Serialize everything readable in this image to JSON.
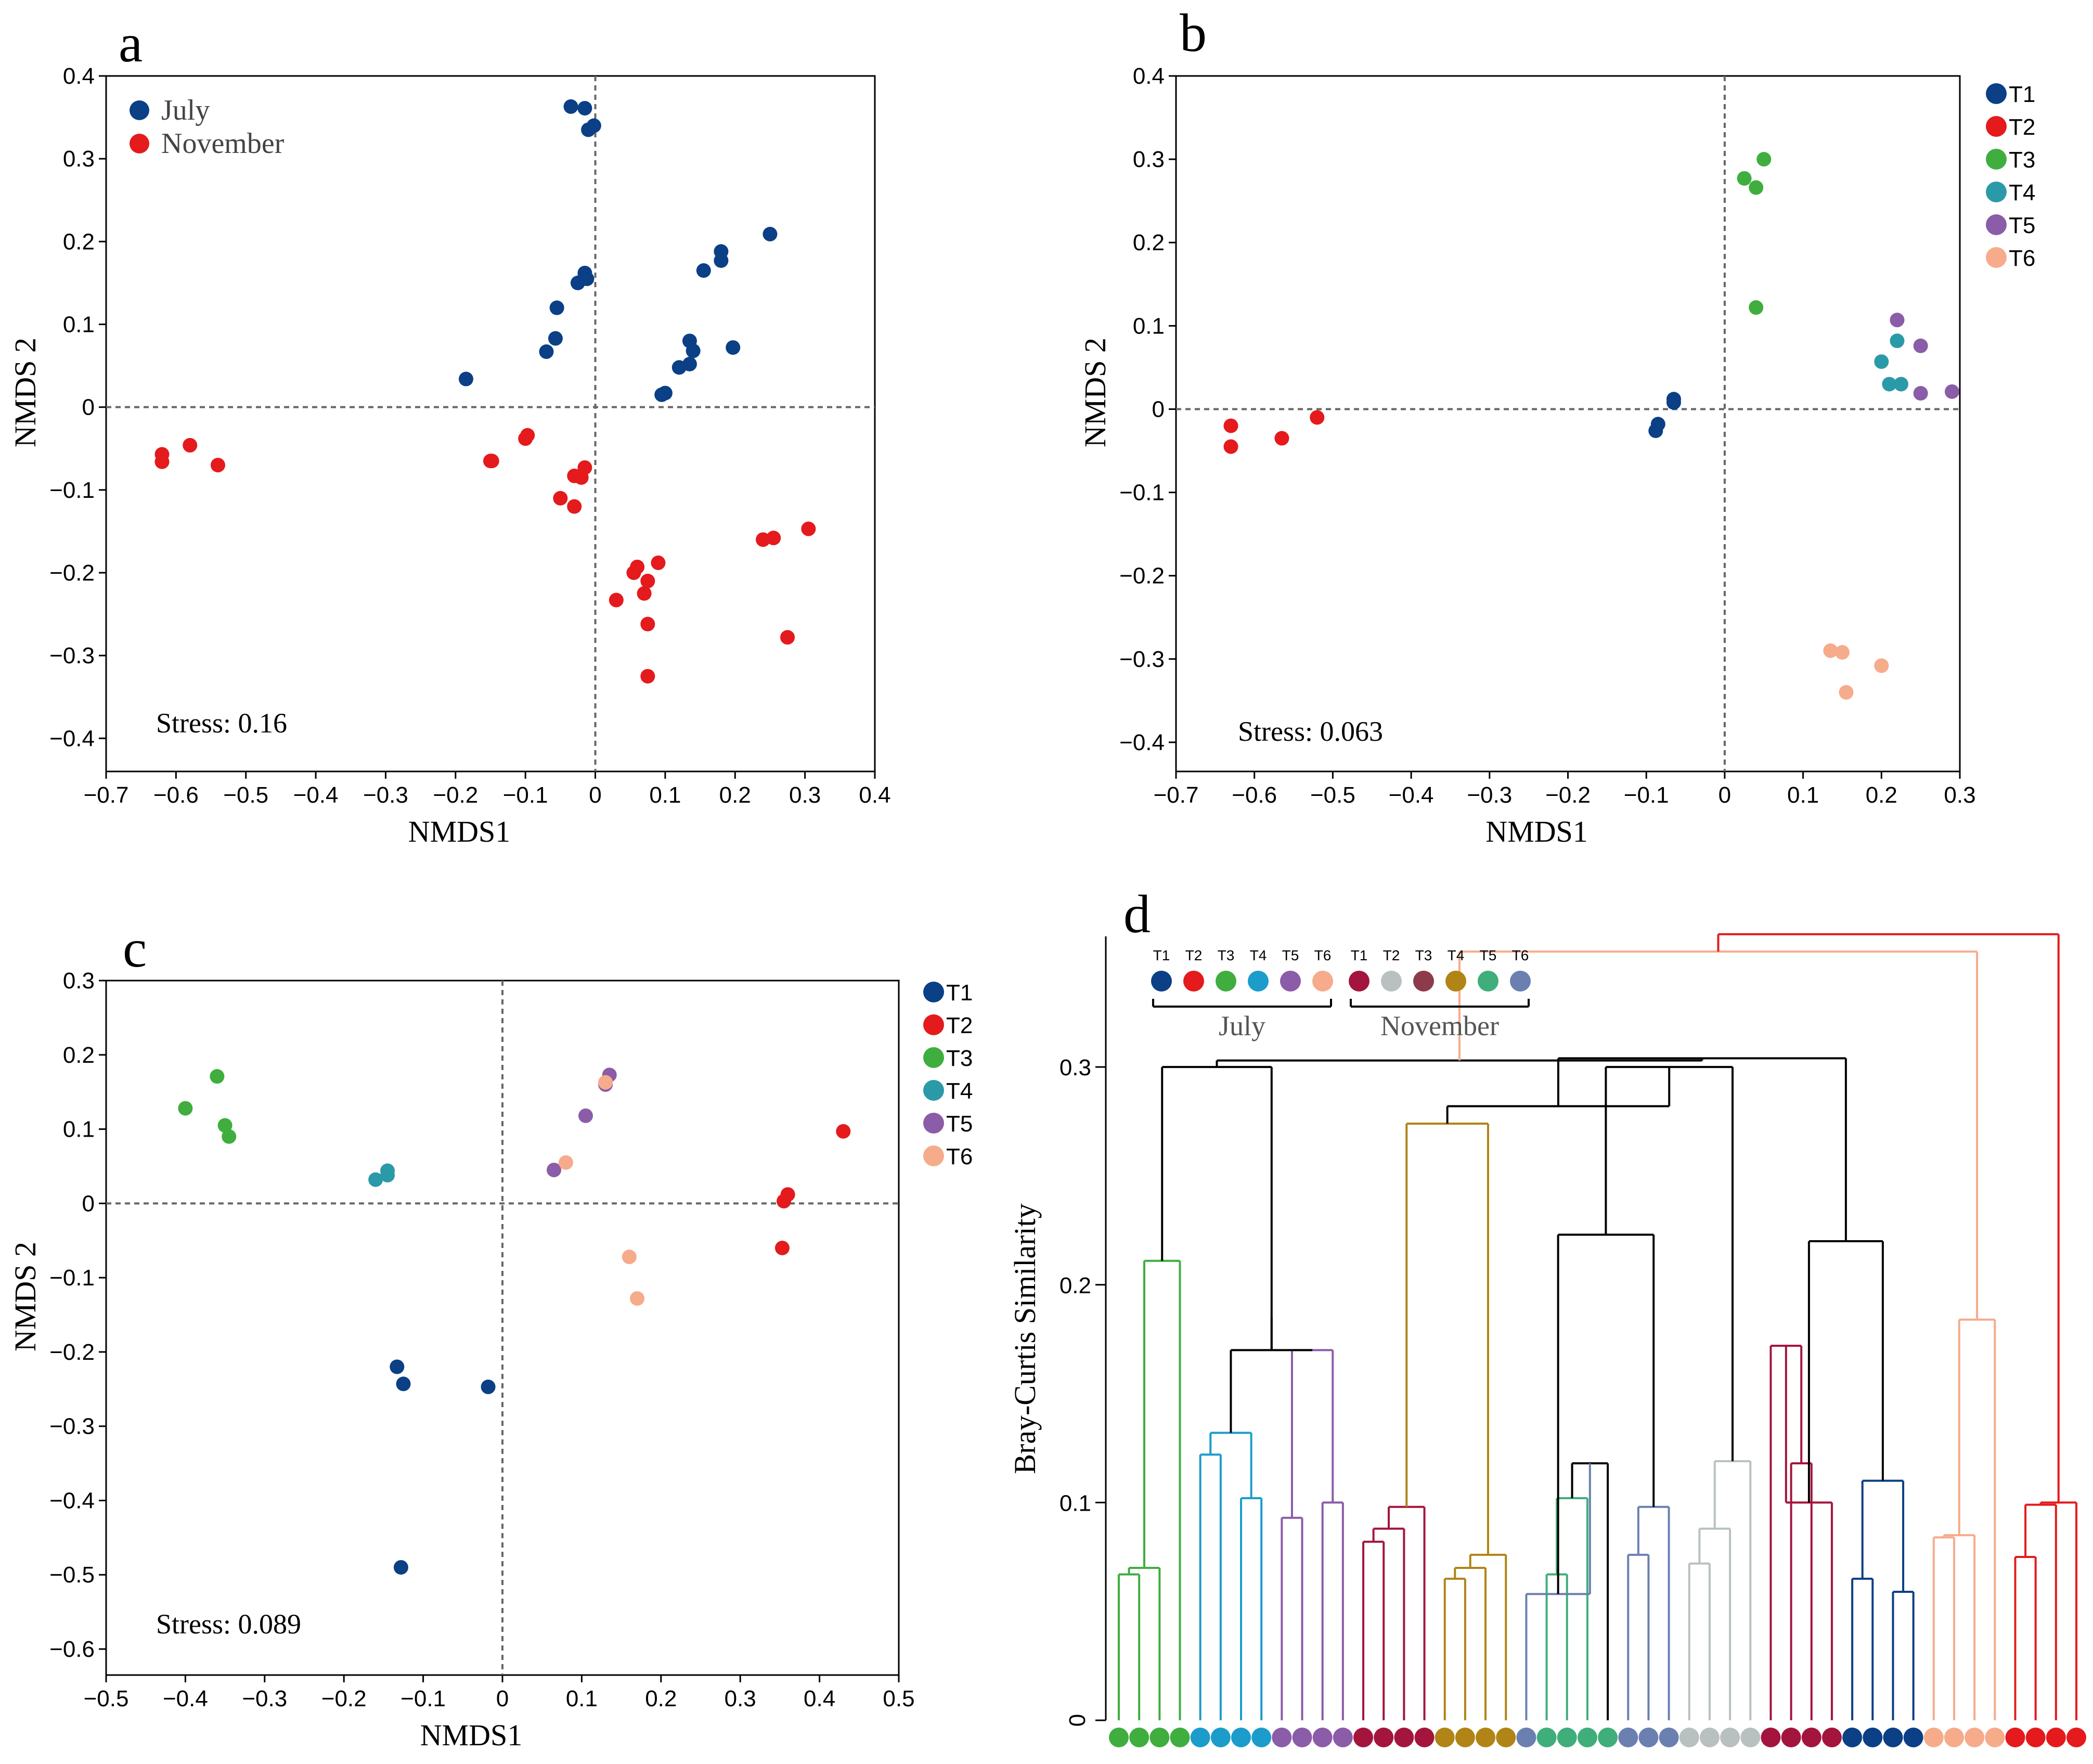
{
  "chart_data": [
    {
      "type": "scatter",
      "panel": "a",
      "xlabel": "NMDS1",
      "ylabel": "NMDS 2",
      "xlim": [
        -0.7,
        0.4
      ],
      "ylim": [
        -0.44,
        0.4
      ],
      "xticks": [
        -0.7,
        -0.6,
        -0.5,
        -0.4,
        -0.3,
        -0.2,
        -0.1,
        0,
        0.1,
        0.2,
        0.3,
        0.4
      ],
      "yticks": [
        -0.4,
        -0.3,
        -0.2,
        -0.1,
        0,
        0.1,
        0.2,
        0.3,
        0.4
      ],
      "stress": "Stress: 0.16",
      "legend_style": "serif",
      "series": [
        {
          "name": "July",
          "color": "#0b3f86",
          "points": [
            [
              -0.035,
              0.363
            ],
            [
              -0.015,
              0.361
            ],
            [
              -0.01,
              0.335
            ],
            [
              -0.002,
              0.34
            ],
            [
              -0.025,
              0.15
            ],
            [
              -0.015,
              0.158
            ],
            [
              -0.015,
              0.162
            ],
            [
              -0.012,
              0.155
            ],
            [
              -0.055,
              0.12
            ],
            [
              -0.057,
              0.083
            ],
            [
              -0.07,
              0.067
            ],
            [
              -0.185,
              0.034
            ],
            [
              0.095,
              0.015
            ],
            [
              0.1,
              0.017
            ],
            [
              0.12,
              0.048
            ],
            [
              0.135,
              0.08
            ],
            [
              0.14,
              0.068
            ],
            [
              0.135,
              0.052
            ],
            [
              0.155,
              0.165
            ],
            [
              0.18,
              0.188
            ],
            [
              0.18,
              0.177
            ],
            [
              0.197,
              0.072
            ],
            [
              0.25,
              0.209
            ]
          ]
        },
        {
          "name": "November",
          "color": "#e41a1c",
          "points": [
            [
              -0.62,
              -0.057
            ],
            [
              -0.62,
              -0.066
            ],
            [
              -0.58,
              -0.046
            ],
            [
              -0.54,
              -0.07
            ],
            [
              -0.15,
              -0.065
            ],
            [
              -0.148,
              -0.065
            ],
            [
              -0.1,
              -0.038
            ],
            [
              -0.097,
              -0.034
            ],
            [
              -0.05,
              -0.11
            ],
            [
              -0.03,
              -0.12
            ],
            [
              -0.03,
              -0.083
            ],
            [
              -0.02,
              -0.085
            ],
            [
              -0.015,
              -0.073
            ],
            [
              0.03,
              -0.233
            ],
            [
              0.055,
              -0.2
            ],
            [
              0.06,
              -0.193
            ],
            [
              0.075,
              -0.21
            ],
            [
              0.07,
              -0.225
            ],
            [
              0.09,
              -0.188
            ],
            [
              0.075,
              -0.262
            ],
            [
              0.075,
              -0.325
            ],
            [
              0.24,
              -0.16
            ],
            [
              0.255,
              -0.158
            ],
            [
              0.275,
              -0.278
            ],
            [
              0.305,
              -0.147
            ]
          ]
        }
      ]
    },
    {
      "type": "scatter",
      "panel": "b",
      "xlabel": "NMDS1",
      "ylabel": "NMDS 2",
      "xlim": [
        -0.7,
        0.3
      ],
      "ylim": [
        -0.435,
        0.4
      ],
      "xticks": [
        -0.7,
        -0.6,
        -0.5,
        -0.4,
        -0.3,
        -0.2,
        -0.1,
        0,
        0.1,
        0.2,
        0.3
      ],
      "yticks": [
        -0.4,
        -0.3,
        -0.2,
        -0.1,
        0,
        0.1,
        0.2,
        0.3,
        0.4
      ],
      "stress": "Stress: 0.063",
      "legend_style": "sans",
      "series": [
        {
          "name": "T1",
          "color": "#0b3f86",
          "points": [
            [
              -0.065,
              0.012
            ],
            [
              -0.065,
              0.008
            ],
            [
              -0.085,
              -0.018
            ],
            [
              -0.088,
              -0.026
            ]
          ]
        },
        {
          "name": "T2",
          "color": "#e41a1c",
          "points": [
            [
              -0.63,
              -0.02
            ],
            [
              -0.63,
              -0.045
            ],
            [
              -0.565,
              -0.035
            ],
            [
              -0.52,
              -0.01
            ]
          ]
        },
        {
          "name": "T3",
          "color": "#3fae3f",
          "points": [
            [
              0.025,
              0.277
            ],
            [
              0.04,
              0.266
            ],
            [
              0.05,
              0.3
            ],
            [
              0.04,
              0.122
            ]
          ]
        },
        {
          "name": "T4",
          "color": "#2b9aa8",
          "points": [
            [
              0.2,
              0.057
            ],
            [
              0.21,
              0.03
            ],
            [
              0.225,
              0.03
            ],
            [
              0.22,
              0.082
            ]
          ]
        },
        {
          "name": "T5",
          "color": "#8b5ca8",
          "points": [
            [
              0.22,
              0.107
            ],
            [
              0.25,
              0.076
            ],
            [
              0.25,
              0.019
            ],
            [
              0.29,
              0.021
            ]
          ]
        },
        {
          "name": "T6",
          "color": "#f6ab8b",
          "points": [
            [
              0.135,
              -0.29
            ],
            [
              0.15,
              -0.292
            ],
            [
              0.155,
              -0.34
            ],
            [
              0.2,
              -0.308
            ]
          ]
        }
      ]
    },
    {
      "type": "scatter",
      "panel": "c",
      "xlabel": "NMDS1",
      "ylabel": "NMDS 2",
      "xlim": [
        -0.5,
        0.5
      ],
      "ylim": [
        -0.635,
        0.3
      ],
      "xticks": [
        -0.5,
        -0.4,
        -0.3,
        -0.2,
        -0.1,
        0,
        0.1,
        0.2,
        0.3,
        0.4,
        0.5
      ],
      "yticks": [
        -0.6,
        -0.5,
        -0.4,
        -0.3,
        -0.2,
        -0.1,
        0,
        0.1,
        0.2,
        0.3
      ],
      "stress": "Stress: 0.089",
      "legend_style": "sans",
      "series": [
        {
          "name": "T1",
          "color": "#0b3f86",
          "points": [
            [
              -0.133,
              -0.22
            ],
            [
              -0.125,
              -0.243
            ],
            [
              -0.018,
              -0.247
            ],
            [
              -0.128,
              -0.49
            ]
          ]
        },
        {
          "name": "T2",
          "color": "#e41a1c",
          "points": [
            [
              0.43,
              0.097
            ],
            [
              0.36,
              0.012
            ],
            [
              0.355,
              0.003
            ],
            [
              0.353,
              -0.06
            ]
          ]
        },
        {
          "name": "T3",
          "color": "#3fae3f",
          "points": [
            [
              -0.4,
              0.128
            ],
            [
              -0.36,
              0.171
            ],
            [
              -0.35,
              0.105
            ],
            [
              -0.345,
              0.09
            ]
          ]
        },
        {
          "name": "T4",
          "color": "#2b9aa8",
          "points": [
            [
              -0.16,
              0.032
            ],
            [
              -0.145,
              0.038
            ],
            [
              -0.145,
              0.044
            ]
          ]
        },
        {
          "name": "T5",
          "color": "#8b5ca8",
          "points": [
            [
              0.065,
              0.045
            ],
            [
              0.105,
              0.118
            ],
            [
              0.13,
              0.16
            ],
            [
              0.135,
              0.173
            ]
          ]
        },
        {
          "name": "T6",
          "color": "#f6ab8b",
          "points": [
            [
              0.08,
              0.055
            ],
            [
              0.13,
              0.163
            ],
            [
              0.16,
              -0.072
            ],
            [
              0.17,
              -0.128
            ]
          ]
        }
      ]
    },
    {
      "type": "dendrogram",
      "panel": "d",
      "ylabel": "Bray-Curtis  Similarity",
      "ylim": [
        0,
        0.36
      ],
      "yticks": [
        0,
        0.1,
        0.2,
        0.3
      ],
      "yticklabels": [
        "0",
        "0.1",
        "0.2",
        "0.3"
      ],
      "leaf_groups": [
        {
          "color": "#3fae3f",
          "count": 4
        },
        {
          "color": "#1c9ccb",
          "count": 4
        },
        {
          "color": "#8b5ca8",
          "count": 4
        },
        {
          "color": "#a3153d",
          "count": 4
        },
        {
          "color": "#b08416",
          "count": 4
        },
        {
          "color": "#6b7fb0",
          "count": 1
        },
        {
          "color": "#3fae7a",
          "count": 4
        },
        {
          "color": "#6b7fb0",
          "count": 3
        },
        {
          "color": "#b8c0c0",
          "count": 4
        },
        {
          "color": "#a3153d",
          "count": 4
        },
        {
          "color": "#0b3f86",
          "count": 4
        },
        {
          "color": "#f6ab8b",
          "count": 4
        },
        {
          "color": "#e41a1c",
          "count": 4
        }
      ],
      "legend": {
        "groups": [
          {
            "title": "July",
            "items": [
              {
                "label": "T1",
                "color": "#0b3f86"
              },
              {
                "label": "T2",
                "color": "#e41a1c"
              },
              {
                "label": "T3",
                "color": "#3fae3f"
              },
              {
                "label": "T4",
                "color": "#1c9ccb"
              },
              {
                "label": "T5",
                "color": "#8b5ca8"
              },
              {
                "label": "T6",
                "color": "#f6ab8b"
              }
            ]
          },
          {
            "title": "November",
            "items": [
              {
                "label": "T1",
                "color": "#a3153d"
              },
              {
                "label": "T2",
                "color": "#b8c0c0"
              },
              {
                "label": "T3",
                "color": "#8e3a4d"
              },
              {
                "label": "T4",
                "color": "#b08416"
              },
              {
                "label": "T5",
                "color": "#3fae7a"
              },
              {
                "label": "T6",
                "color": "#6b7fb0"
              }
            ]
          }
        ]
      }
    }
  ],
  "panel_letters": [
    "a",
    "b",
    "c",
    "d"
  ]
}
